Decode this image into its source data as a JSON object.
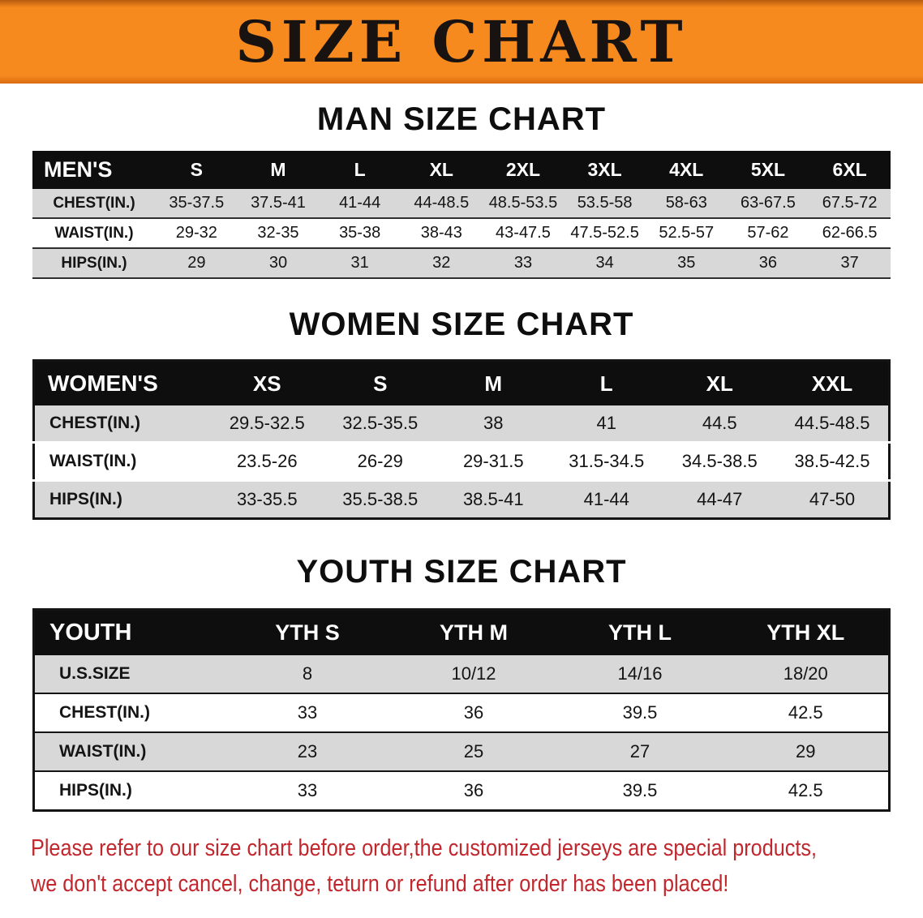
{
  "banner": {
    "title": "SIZE CHART"
  },
  "sections": {
    "men": {
      "heading": "MAN SIZE CHART",
      "table": {
        "header": [
          "MEN'S",
          "S",
          "M",
          "L",
          "XL",
          "2XL",
          "3XL",
          "4XL",
          "5XL",
          "6XL"
        ],
        "rows": [
          [
            "CHEST(IN.)",
            "35-37.5",
            "37.5-41",
            "41-44",
            "44-48.5",
            "48.5-53.5",
            "53.5-58",
            "58-63",
            "63-67.5",
            "67.5-72"
          ],
          [
            "WAIST(IN.)",
            "29-32",
            "32-35",
            "35-38",
            "38-43",
            "43-47.5",
            "47.5-52.5",
            "52.5-57",
            "57-62",
            "62-66.5"
          ],
          [
            "HIPS(IN.)",
            "29",
            "30",
            "31",
            "32",
            "33",
            "34",
            "35",
            "36",
            "37"
          ]
        ]
      }
    },
    "women": {
      "heading": "WOMEN SIZE CHART",
      "table": {
        "header": [
          "WOMEN'S",
          "XS",
          "S",
          "M",
          "L",
          "XL",
          "XXL"
        ],
        "rows": [
          [
            "CHEST(IN.)",
            "29.5-32.5",
            "32.5-35.5",
            "38",
            "41",
            "44.5",
            "44.5-48.5"
          ],
          [
            "WAIST(IN.)",
            "23.5-26",
            "26-29",
            "29-31.5",
            "31.5-34.5",
            "34.5-38.5",
            "38.5-42.5"
          ],
          [
            "HIPS(IN.)",
            "33-35.5",
            "35.5-38.5",
            "38.5-41",
            "41-44",
            "44-47",
            "47-50"
          ]
        ]
      }
    },
    "youth": {
      "heading": "YOUTH SIZE CHART",
      "table": {
        "header": [
          "YOUTH",
          "YTH S",
          "YTH M",
          "YTH L",
          "YTH XL"
        ],
        "rows": [
          [
            "U.S.SIZE",
            "8",
            "10/12",
            "14/16",
            "18/20"
          ],
          [
            "CHEST(IN.)",
            "33",
            "36",
            "39.5",
            "42.5"
          ],
          [
            "WAIST(IN.)",
            "23",
            "25",
            "27",
            "29"
          ],
          [
            "HIPS(IN.)",
            "33",
            "36",
            "39.5",
            "42.5"
          ]
        ]
      }
    }
  },
  "footer": {
    "line1": "Please refer to our size chart before order,the customized jerseys are special products,",
    "line2": "we don't accept cancel, change, teturn or refund after order has been placed!"
  },
  "colors": {
    "banner_bg": "#f68a1f",
    "table_header_bg": "#0e0e0e",
    "row_stripe_bg": "#d8d8d8",
    "disclaimer_text": "#c1272d"
  }
}
